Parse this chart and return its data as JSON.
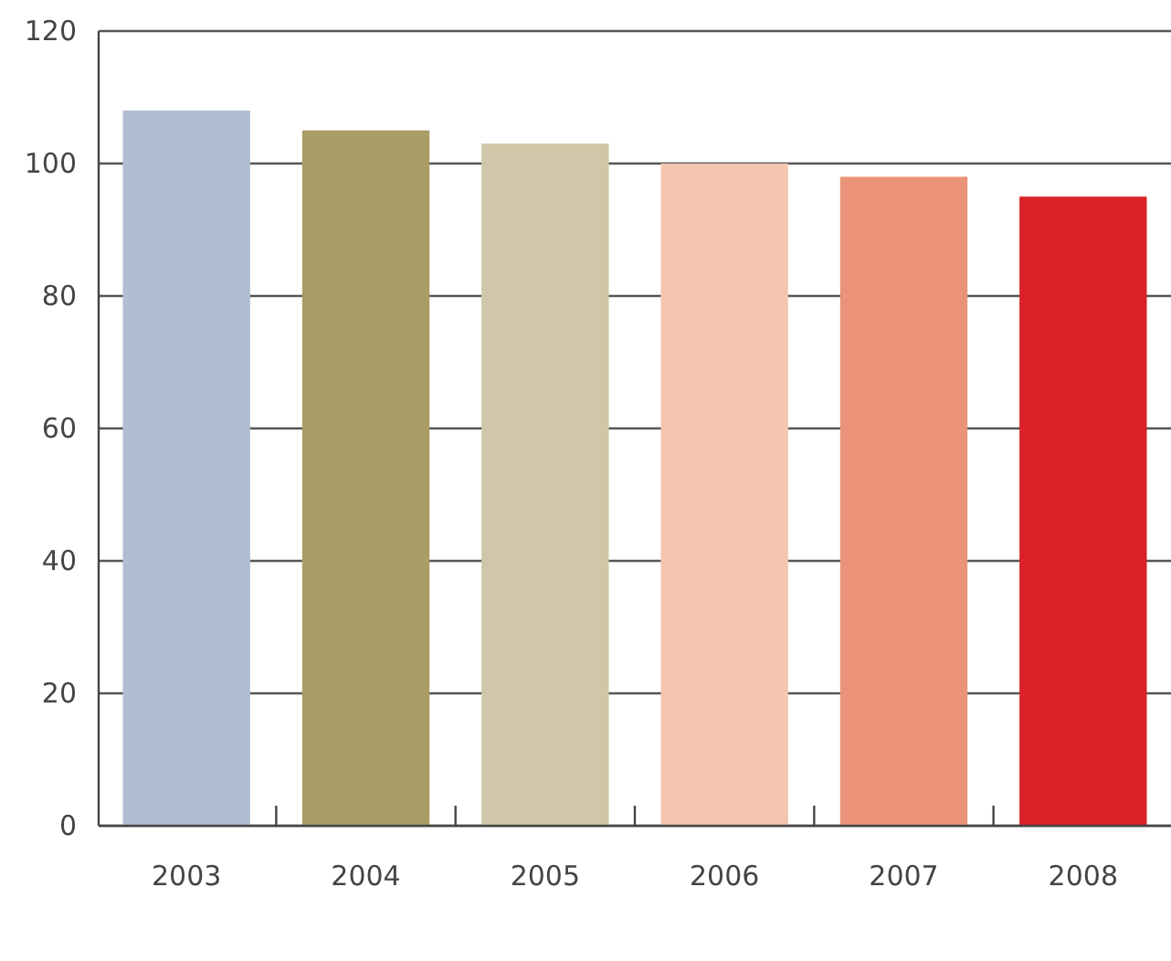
{
  "chart_data": {
    "type": "bar",
    "categories": [
      "2003",
      "2004",
      "2005",
      "2006",
      "2007",
      "2008"
    ],
    "values": [
      108,
      105,
      103,
      100,
      98,
      95
    ],
    "colors": [
      "#b1bed2",
      "#a99c67",
      "#cfc7a7",
      "#f4c6b2",
      "#ea9378",
      "#d92127"
    ],
    "ylim": [
      0,
      120
    ],
    "yticks": [
      0,
      20,
      40,
      60,
      80,
      100,
      120
    ],
    "grid": "y"
  }
}
